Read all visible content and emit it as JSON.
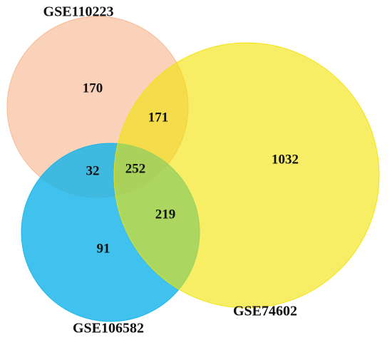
{
  "chart_data": {
    "type": "venn",
    "series": [
      {
        "name": "GSE110223",
        "color": "#f7b48c"
      },
      {
        "name": "GSE74602",
        "color": "#f2e200"
      },
      {
        "name": "GSE106582",
        "color": "#12b3ea"
      }
    ],
    "values": [
      170,
      171,
      32,
      252,
      219,
      91,
      1032
    ]
  }
}
